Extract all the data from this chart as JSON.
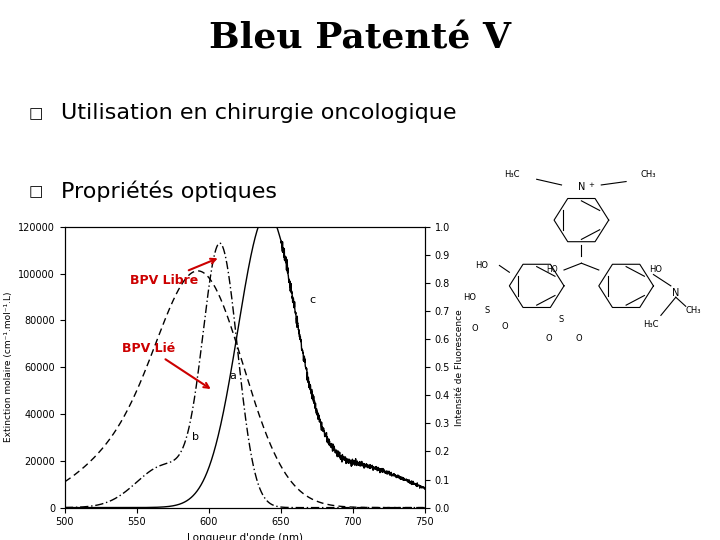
{
  "title": "Bleu Patenté V",
  "bullet1": "Utilisation en chirurgie oncologique",
  "bullet2": "Propriétés optiques",
  "title_fontsize": 26,
  "bullet_fontsize": 16,
  "label_bpv_libre": "BPV Libre",
  "label_bpv_lie": "BPV Lié",
  "arrow_color": "#cc0000",
  "background_color": "#ffffff",
  "xlabel": "Longueur d'onde (nm)",
  "ylabel_left": "Extinction molaire (cm⁻¹.mol⁻¹.L)",
  "ylabel_right": "Intensité de Fluorescence",
  "x_min": 500,
  "x_max": 750,
  "y_left_min": 0,
  "y_left_max": 120000,
  "y_right_min": 0,
  "y_right_max": 1.0,
  "yticks_left": [
    0,
    20000,
    40000,
    60000,
    80000,
    100000,
    120000
  ],
  "yticks_right": [
    0,
    0.1,
    0.2,
    0.3,
    0.4,
    0.5,
    0.6,
    0.7,
    0.8,
    0.9,
    1.0
  ],
  "xticks": [
    500,
    550,
    600,
    650,
    700,
    750
  ],
  "chem_bg": "#e0e0e0"
}
